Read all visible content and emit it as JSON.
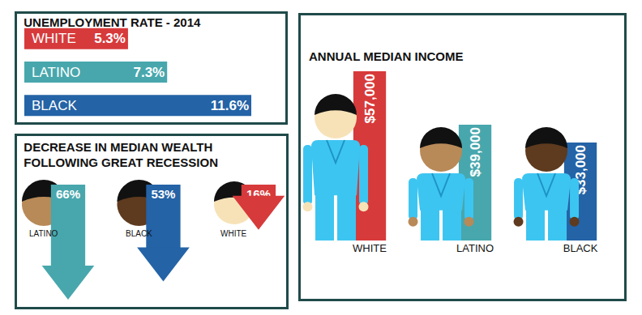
{
  "chart_data": [
    {
      "type": "bar",
      "title": "UNEMPLOYMENT RATE - 2014",
      "orientation": "horizontal",
      "categories": [
        "WHITE",
        "LATINO",
        "BLACK"
      ],
      "values": [
        5.3,
        7.3,
        11.6
      ],
      "value_labels": [
        "5.3%",
        "7.3%",
        "11.6%"
      ],
      "colors": [
        "#d73a3b",
        "#48a7ad",
        "#2463a6"
      ],
      "xlim": [
        0,
        11.6
      ],
      "data_labels": true,
      "tick_labels": false
    },
    {
      "type": "bar",
      "title": "DECREASE IN MEDIAN WEALTH\nFOLLOWING GREAT RECESSION",
      "categories": [
        "LATINO",
        "BLACK",
        "WHITE"
      ],
      "values": [
        66,
        53,
        16
      ],
      "value_labels": [
        "66%",
        "53%",
        "16%"
      ],
      "colors": [
        "#48a7ad",
        "#2463a6",
        "#d73a3b"
      ],
      "ylim": [
        0,
        70
      ],
      "marker": "triangle-down",
      "data_labels": true,
      "tick_labels": false
    },
    {
      "type": "bar",
      "title": "ANNUAL MEDIAN INCOME",
      "categories": [
        "WHITE",
        "LATINO",
        "BLACK"
      ],
      "values": [
        57000,
        39000,
        33000
      ],
      "value_labels": [
        "$57,000",
        "$39,000",
        "$33,000"
      ],
      "colors": [
        "#d73a3b",
        "#48a7ad",
        "#2463a6"
      ],
      "ylim": [
        0,
        57000
      ],
      "data_labels": true,
      "tick_labels": "x"
    }
  ]
}
